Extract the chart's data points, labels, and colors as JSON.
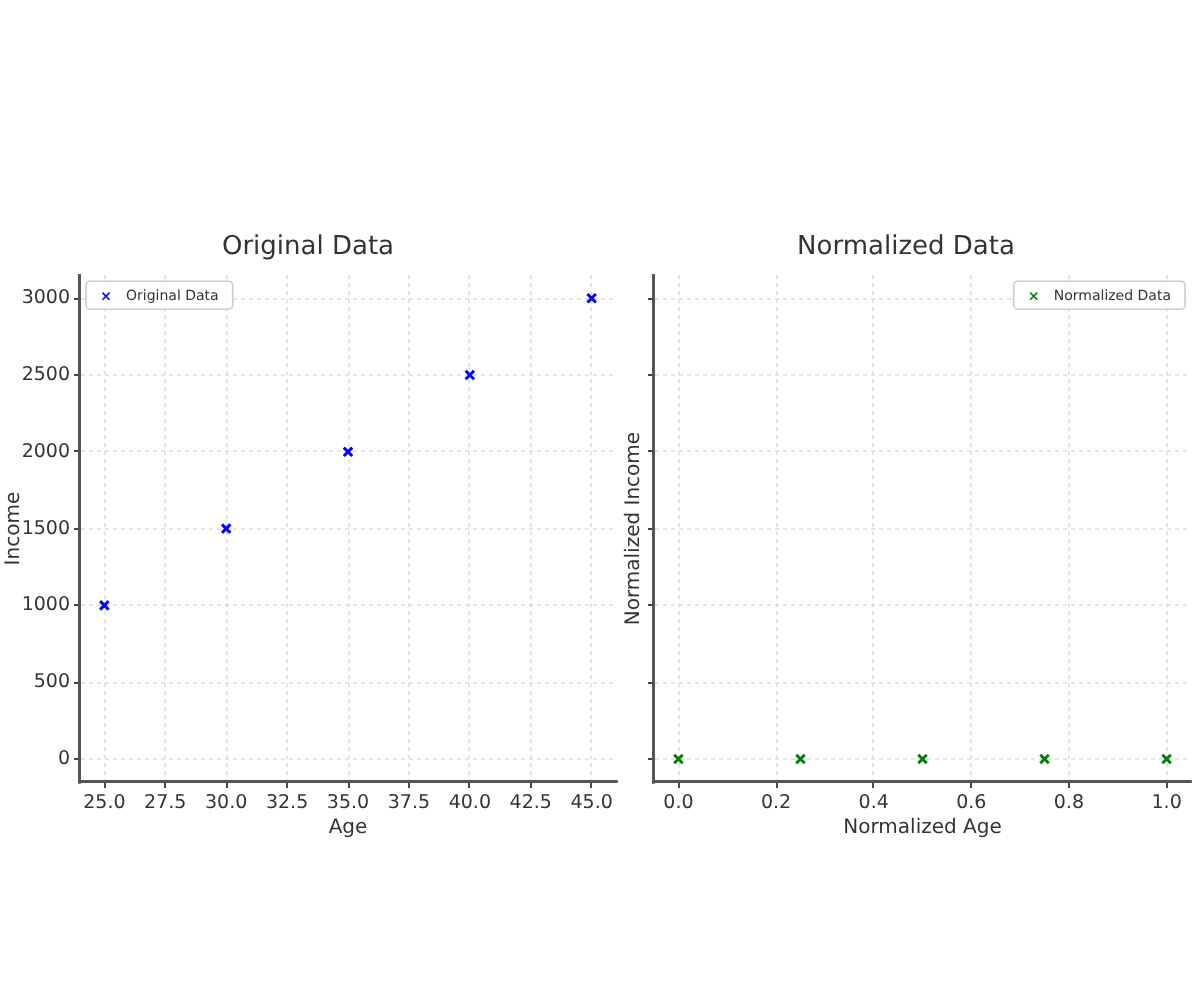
{
  "chart_data": [
    {
      "type": "scatter",
      "title": "Original Data",
      "xlabel": "Age",
      "ylabel": "Income",
      "x": [
        25,
        30,
        35,
        40,
        45
      ],
      "series": [
        {
          "name": "Original Data",
          "color": "#0000ff",
          "values": [
            1000,
            1500,
            2000,
            2500,
            3000
          ]
        }
      ],
      "xlim": [
        24,
        46
      ],
      "ylim": [
        -150,
        3150
      ],
      "xticks": [
        {
          "value": 25,
          "label": "25.0"
        },
        {
          "value": 27.5,
          "label": "27.5"
        },
        {
          "value": 30,
          "label": "30.0"
        },
        {
          "value": 32.5,
          "label": "32.5"
        },
        {
          "value": 35,
          "label": "35.0"
        },
        {
          "value": 37.5,
          "label": "37.5"
        },
        {
          "value": 40,
          "label": "40.0"
        },
        {
          "value": 42.5,
          "label": "42.5"
        },
        {
          "value": 45,
          "label": "45.0"
        }
      ],
      "yticks": [
        0,
        500,
        1000,
        1500,
        2000,
        2500,
        3000
      ],
      "grid": true,
      "legend": "top left",
      "marker": "cross"
    },
    {
      "type": "scatter",
      "title": "Normalized Data",
      "xlabel": "Normalized Age",
      "ylabel": "Normalized Income",
      "x": [
        0,
        0.25,
        0.5,
        0.75,
        1
      ],
      "series": [
        {
          "name": "Normalized Data",
          "color": "#008000",
          "values": [
            0,
            0,
            0,
            0,
            0
          ]
        }
      ],
      "xlim": [
        -0.05,
        1.05
      ],
      "ylim": [
        -150,
        3150
      ],
      "xticks": [
        {
          "value": 0,
          "label": "0.0"
        },
        {
          "value": 0.2,
          "label": "0.2"
        },
        {
          "value": 0.4,
          "label": "0.4"
        },
        {
          "value": 0.6,
          "label": "0.6"
        },
        {
          "value": 0.8,
          "label": "0.8"
        },
        {
          "value": 1,
          "label": "1.0"
        }
      ],
      "yticks": [
        0,
        500,
        1000,
        1500,
        2000,
        2500,
        3000
      ],
      "tick_labels": "x",
      "grid": true,
      "legend": "top right",
      "marker": "cross"
    }
  ]
}
